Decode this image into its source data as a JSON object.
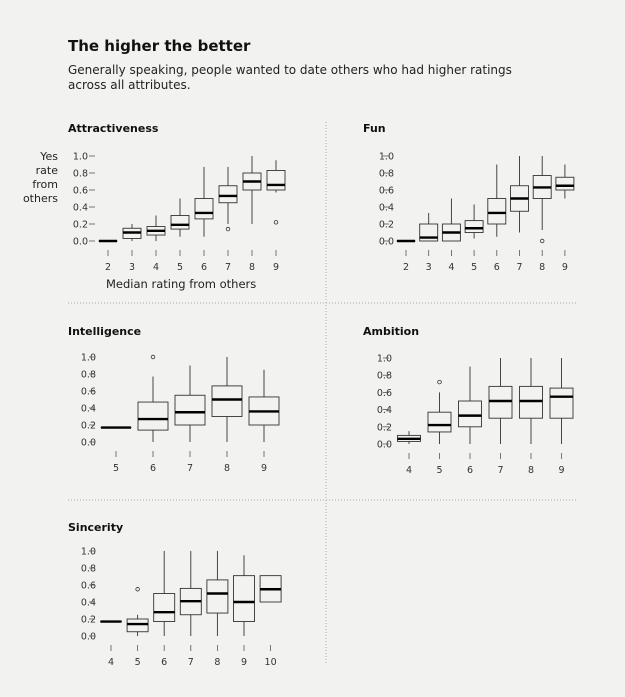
{
  "header": {
    "title": "The higher the better",
    "subtitle": "Generally speaking, people wanted to date others who had higher ratings across all attributes."
  },
  "axes": {
    "ylabel": "Yes rate from others",
    "xlabel": "Median rating from others",
    "yticks": [
      "1.0",
      "0.8",
      "0.6",
      "0.4",
      "0.2",
      "0.0"
    ]
  },
  "colors": {
    "box_fill": "#f2f2f0",
    "line": "#333333",
    "median": "#000000",
    "divider": "#aaaaaa"
  },
  "chart_data": [
    {
      "type": "box",
      "title": "Attractiveness",
      "ylim": [
        0,
        1
      ],
      "categories": [
        "2",
        "3",
        "4",
        "5",
        "6",
        "7",
        "8",
        "9"
      ],
      "boxes": [
        {
          "x": "2",
          "min": 0,
          "q1": 0,
          "median": 0,
          "q3": 0,
          "max": 0,
          "outliers": []
        },
        {
          "x": "3",
          "min": 0,
          "q1": 0.03,
          "median": 0.1,
          "q3": 0.15,
          "max": 0.2,
          "outliers": []
        },
        {
          "x": "4",
          "min": 0,
          "q1": 0.07,
          "median": 0.12,
          "q3": 0.17,
          "max": 0.3,
          "outliers": []
        },
        {
          "x": "5",
          "min": 0.05,
          "q1": 0.14,
          "median": 0.19,
          "q3": 0.3,
          "max": 0.5,
          "outliers": []
        },
        {
          "x": "6",
          "min": 0.05,
          "q1": 0.26,
          "median": 0.33,
          "q3": 0.5,
          "max": 0.87,
          "outliers": []
        },
        {
          "x": "7",
          "min": 0.2,
          "q1": 0.45,
          "median": 0.53,
          "q3": 0.65,
          "max": 0.87,
          "outliers": [
            0.14
          ]
        },
        {
          "x": "8",
          "min": 0.2,
          "q1": 0.6,
          "median": 0.7,
          "q3": 0.8,
          "max": 1.0,
          "outliers": []
        },
        {
          "x": "9",
          "min": 0.57,
          "q1": 0.6,
          "median": 0.66,
          "q3": 0.83,
          "max": 0.95,
          "outliers": [
            0.22
          ]
        }
      ]
    },
    {
      "type": "box",
      "title": "Fun",
      "ylim": [
        0,
        1
      ],
      "categories": [
        "2",
        "3",
        "4",
        "5",
        "6",
        "7",
        "8",
        "9"
      ],
      "boxes": [
        {
          "x": "2",
          "min": 0,
          "q1": 0,
          "median": 0,
          "q3": 0,
          "max": 0,
          "outliers": []
        },
        {
          "x": "3",
          "min": 0,
          "q1": 0,
          "median": 0.04,
          "q3": 0.2,
          "max": 0.33,
          "outliers": []
        },
        {
          "x": "4",
          "min": 0,
          "q1": 0,
          "median": 0.1,
          "q3": 0.2,
          "max": 0.5,
          "outliers": []
        },
        {
          "x": "5",
          "min": 0.03,
          "q1": 0.1,
          "median": 0.15,
          "q3": 0.24,
          "max": 0.43,
          "outliers": []
        },
        {
          "x": "6",
          "min": 0.05,
          "q1": 0.2,
          "median": 0.33,
          "q3": 0.5,
          "max": 0.9,
          "outliers": []
        },
        {
          "x": "7",
          "min": 0.1,
          "q1": 0.35,
          "median": 0.5,
          "q3": 0.65,
          "max": 1.0,
          "outliers": []
        },
        {
          "x": "8",
          "min": 0.13,
          "q1": 0.5,
          "median": 0.63,
          "q3": 0.77,
          "max": 1.0,
          "outliers": [
            0.0
          ]
        },
        {
          "x": "9",
          "min": 0.5,
          "q1": 0.6,
          "median": 0.65,
          "q3": 0.75,
          "max": 0.9,
          "outliers": []
        }
      ]
    },
    {
      "type": "box",
      "title": "Intelligence",
      "ylim": [
        0,
        1
      ],
      "categories": [
        "5",
        "6",
        "7",
        "8",
        "9"
      ],
      "boxes": [
        {
          "x": "5",
          "min": 0.17,
          "q1": 0.17,
          "median": 0.17,
          "q3": 0.17,
          "max": 0.17,
          "outliers": []
        },
        {
          "x": "6",
          "min": 0,
          "q1": 0.14,
          "median": 0.27,
          "q3": 0.47,
          "max": 0.77,
          "outliers": [
            1.0
          ]
        },
        {
          "x": "7",
          "min": 0,
          "q1": 0.2,
          "median": 0.35,
          "q3": 0.55,
          "max": 0.9,
          "outliers": []
        },
        {
          "x": "8",
          "min": 0,
          "q1": 0.3,
          "median": 0.5,
          "q3": 0.66,
          "max": 1.0,
          "outliers": []
        },
        {
          "x": "9",
          "min": 0,
          "q1": 0.2,
          "median": 0.36,
          "q3": 0.53,
          "max": 0.85,
          "outliers": []
        }
      ]
    },
    {
      "type": "box",
      "title": "Ambition",
      "ylim": [
        0,
        1
      ],
      "categories": [
        "4",
        "5",
        "6",
        "7",
        "8",
        "9"
      ],
      "boxes": [
        {
          "x": "4",
          "min": 0,
          "q1": 0.03,
          "median": 0.06,
          "q3": 0.1,
          "max": 0.15,
          "outliers": []
        },
        {
          "x": "5",
          "min": 0,
          "q1": 0.14,
          "median": 0.22,
          "q3": 0.37,
          "max": 0.6,
          "outliers": [
            0.72
          ]
        },
        {
          "x": "6",
          "min": 0,
          "q1": 0.2,
          "median": 0.33,
          "q3": 0.5,
          "max": 0.9,
          "outliers": []
        },
        {
          "x": "7",
          "min": 0,
          "q1": 0.3,
          "median": 0.5,
          "q3": 0.67,
          "max": 1.0,
          "outliers": []
        },
        {
          "x": "8",
          "min": 0,
          "q1": 0.3,
          "median": 0.5,
          "q3": 0.67,
          "max": 1.0,
          "outliers": []
        },
        {
          "x": "9",
          "min": 0,
          "q1": 0.3,
          "median": 0.55,
          "q3": 0.65,
          "max": 1.0,
          "outliers": []
        }
      ]
    },
    {
      "type": "box",
      "title": "Sincerity",
      "ylim": [
        0,
        1
      ],
      "categories": [
        "4",
        "5",
        "6",
        "7",
        "8",
        "9",
        "10"
      ],
      "boxes": [
        {
          "x": "4",
          "min": 0.17,
          "q1": 0.17,
          "median": 0.17,
          "q3": 0.17,
          "max": 0.17,
          "outliers": []
        },
        {
          "x": "5",
          "min": 0,
          "q1": 0.05,
          "median": 0.14,
          "q3": 0.2,
          "max": 0.25,
          "outliers": [
            0.55
          ]
        },
        {
          "x": "6",
          "min": 0,
          "q1": 0.17,
          "median": 0.28,
          "q3": 0.5,
          "max": 1.0,
          "outliers": []
        },
        {
          "x": "7",
          "min": 0,
          "q1": 0.25,
          "median": 0.41,
          "q3": 0.56,
          "max": 1.0,
          "outliers": []
        },
        {
          "x": "8",
          "min": 0,
          "q1": 0.27,
          "median": 0.5,
          "q3": 0.66,
          "max": 1.0,
          "outliers": []
        },
        {
          "x": "9",
          "min": 0,
          "q1": 0.17,
          "median": 0.4,
          "q3": 0.71,
          "max": 0.95,
          "outliers": []
        },
        {
          "x": "10",
          "min": 0.4,
          "q1": 0.4,
          "median": 0.55,
          "q3": 0.71,
          "max": 0.71,
          "outliers": []
        }
      ]
    }
  ]
}
